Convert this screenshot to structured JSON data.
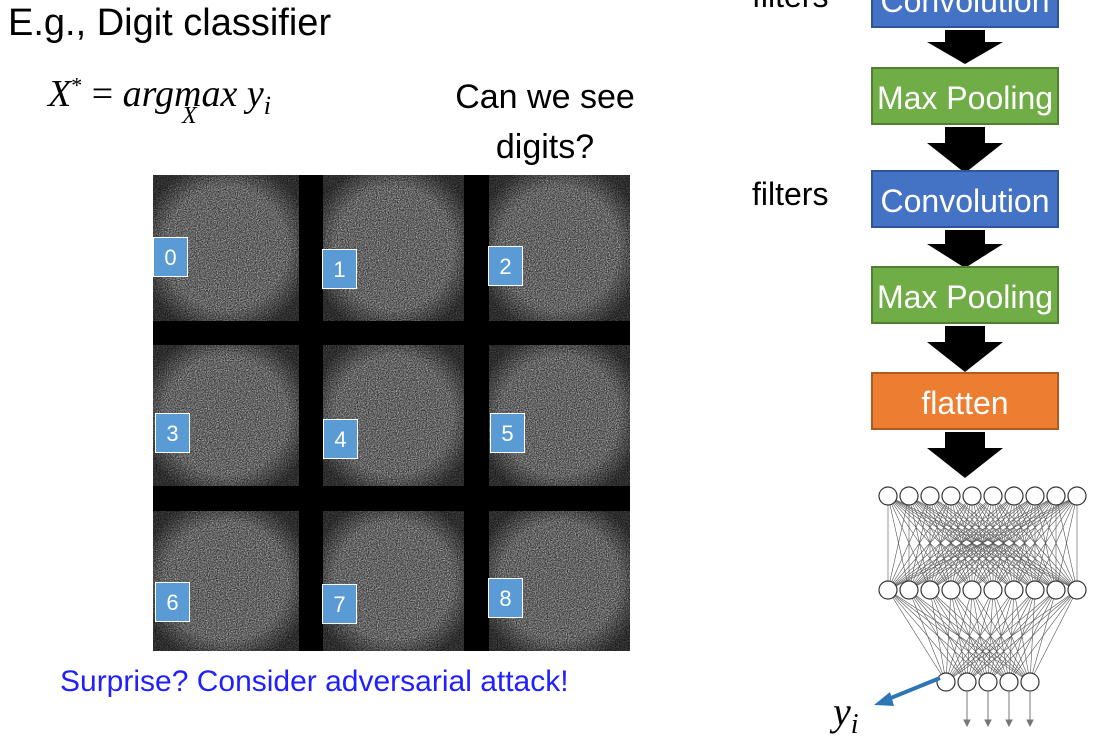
{
  "title": "E.g., Digit classifier",
  "formula": {
    "main": "X* = arg max y",
    "subscript_i": "i",
    "subscript_x": "X"
  },
  "question": "Can we see digits?",
  "grid_labels": [
    "0",
    "1",
    "2",
    "3",
    "4",
    "5",
    "6",
    "7",
    "8"
  ],
  "caption": "Surprise? Consider adversarial attack!",
  "network": {
    "filters_label_top": "filters",
    "filters_label": "filters",
    "layers": [
      "Convolution",
      "Max Pooling",
      "Convolution",
      "Max Pooling",
      "flatten"
    ],
    "output_label": "y",
    "output_subscript": "i"
  },
  "colors": {
    "convolution": "#4472c4",
    "max_pooling": "#70ad47",
    "flatten": "#ed7d31",
    "label_box": "#5b9bd5",
    "caption": "#1f1fff"
  }
}
